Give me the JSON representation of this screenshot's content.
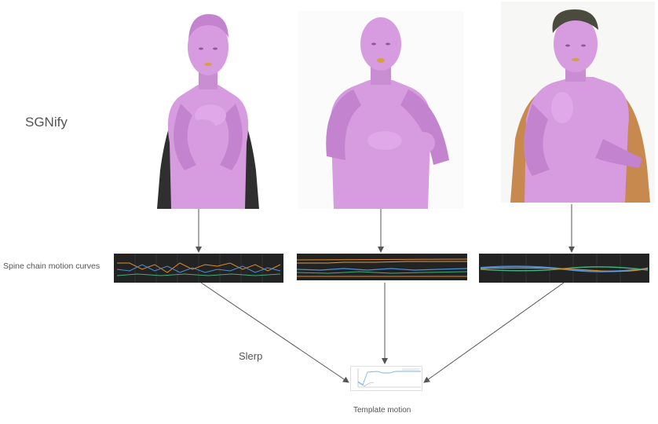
{
  "labels": {
    "method": "SGNify",
    "curves": "Spine chain motion curves",
    "interpolation": "Slerp",
    "template": "Template motion"
  },
  "avatars": [
    {
      "name": "avatar-1",
      "pose": "hands-crossed-on-chest"
    },
    {
      "name": "avatar-2",
      "pose": "hands-together-in-front"
    },
    {
      "name": "avatar-3",
      "pose": "hand-raised-to-chest"
    }
  ],
  "colors": {
    "avatar_skin": "#d79be0",
    "avatar_shadow": "#b878c4",
    "panel_bg": "#232323",
    "curve_orange": "#e08a2a",
    "curve_blue": "#4a90d9",
    "curve_green": "#3fae7a",
    "arrow": "#555555"
  }
}
